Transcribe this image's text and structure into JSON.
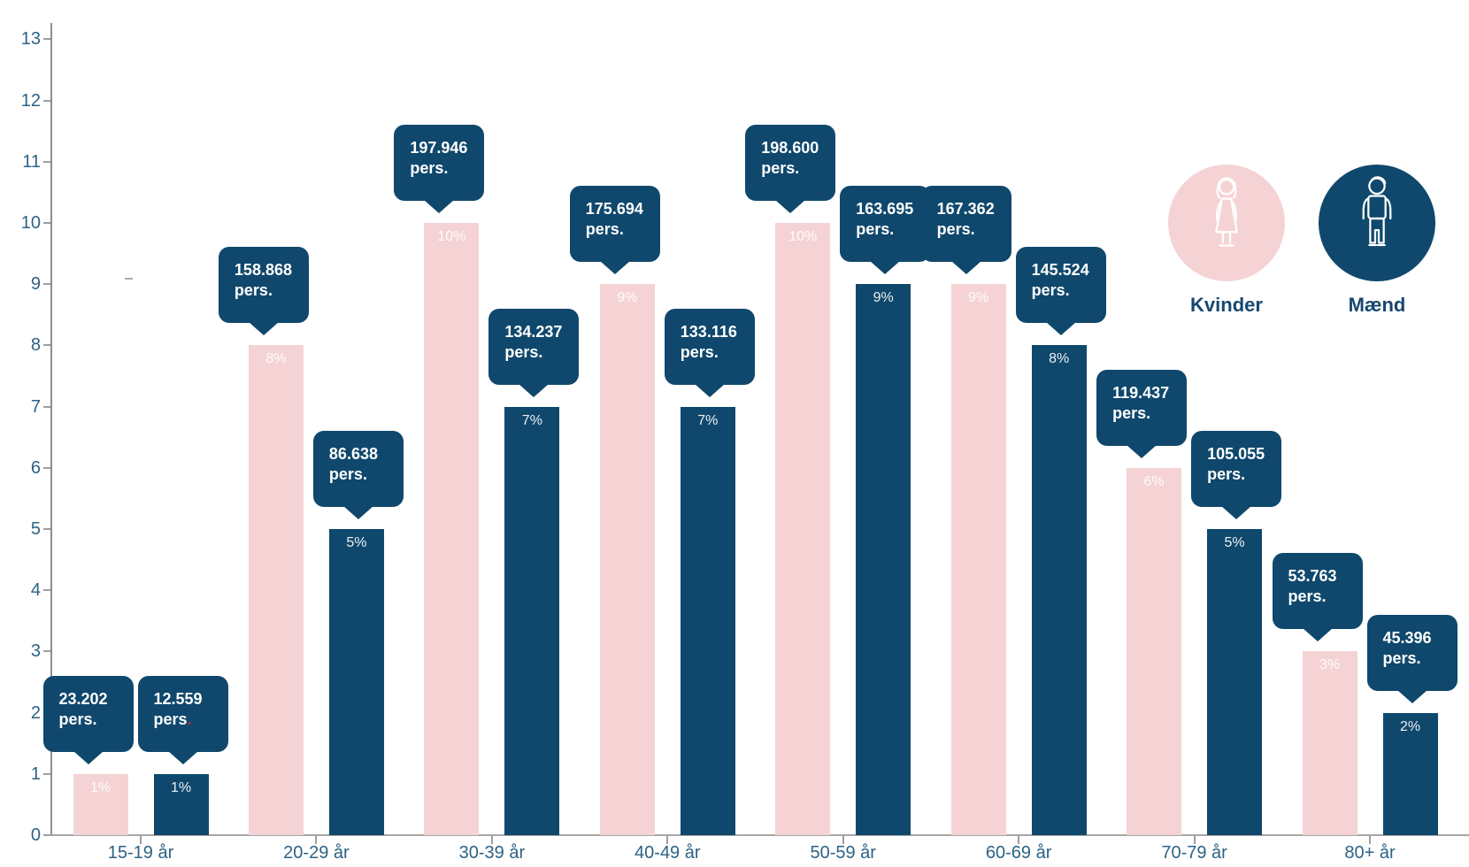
{
  "chart_data": {
    "type": "bar",
    "title": "",
    "categories": [
      "15-19 år",
      "20-29 år",
      "30-39 år",
      "40-49 år",
      "50-59 år",
      "60-69 år",
      "70-79 år",
      "80+ år"
    ],
    "yticks": [
      0,
      1,
      2,
      3,
      4,
      5,
      6,
      7,
      8,
      9,
      10,
      11,
      12,
      13
    ],
    "ylim": [
      0,
      13
    ],
    "grid": false,
    "legend_position": "top-right",
    "series": [
      {
        "name": "Kvinder",
        "color": "#f5d3d5",
        "values": [
          1,
          8,
          10,
          9,
          10,
          9,
          6,
          3
        ],
        "percent_labels": [
          "1%",
          "8%",
          "10%",
          "9%",
          "10%",
          "9%",
          "6%",
          "3%"
        ],
        "callout_values": [
          "23.202",
          "158.868",
          "197.946",
          "175.694",
          "198.600",
          "167.362",
          "119.437",
          "53.763"
        ]
      },
      {
        "name": "Mænd",
        "color": "#0f486c",
        "values": [
          1,
          5,
          7,
          7,
          9,
          8,
          5,
          2
        ],
        "percent_labels": [
          "1%",
          "5%",
          "7%",
          "7%",
          "9%",
          "8%",
          "5%",
          "2%"
        ],
        "callout_values": [
          "12.559",
          "86.638",
          "134.237",
          "133.116",
          "163.695",
          "145.524",
          "105.055",
          "45.396"
        ]
      }
    ],
    "callout_unit": "pers",
    "callout_dot": ".",
    "red_dot": {
      "series_index": 1,
      "callout_index": 0,
      "color": "#c9252c"
    }
  },
  "legend": {
    "items": [
      {
        "label": "Kvinder",
        "circle_color": "#f5d3d5",
        "icon": "woman-icon"
      },
      {
        "label": "Mænd",
        "circle_color": "#0f486c",
        "icon": "man-icon"
      }
    ]
  },
  "colors": {
    "navy": "#0f486c",
    "pink": "#f5d3d5",
    "axis_text": "#2d6285",
    "axis_line": "#9e9e9e",
    "callout_text": "#ffffff",
    "legend_text": "#17476f"
  }
}
